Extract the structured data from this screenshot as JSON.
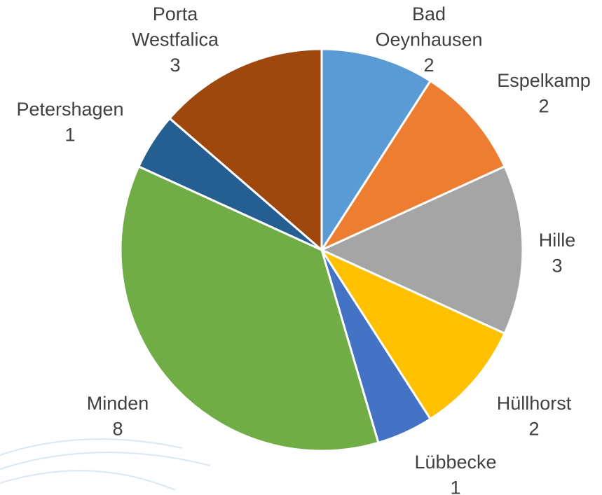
{
  "chart_data": {
    "type": "pie",
    "categories": [
      "Bad Oeynhausen",
      "Espelkamp",
      "Hille",
      "Hüllhorst",
      "Lübbecke",
      "Minden",
      "Petershagen",
      "Porta Westfalica"
    ],
    "values": [
      2,
      2,
      3,
      2,
      1,
      8,
      1,
      3
    ],
    "colors": [
      "#5b9bd5",
      "#ed7d31",
      "#a5a5a5",
      "#ffc000",
      "#4472c4",
      "#70ad47",
      "#255e91",
      "#9e480e"
    ]
  }
}
